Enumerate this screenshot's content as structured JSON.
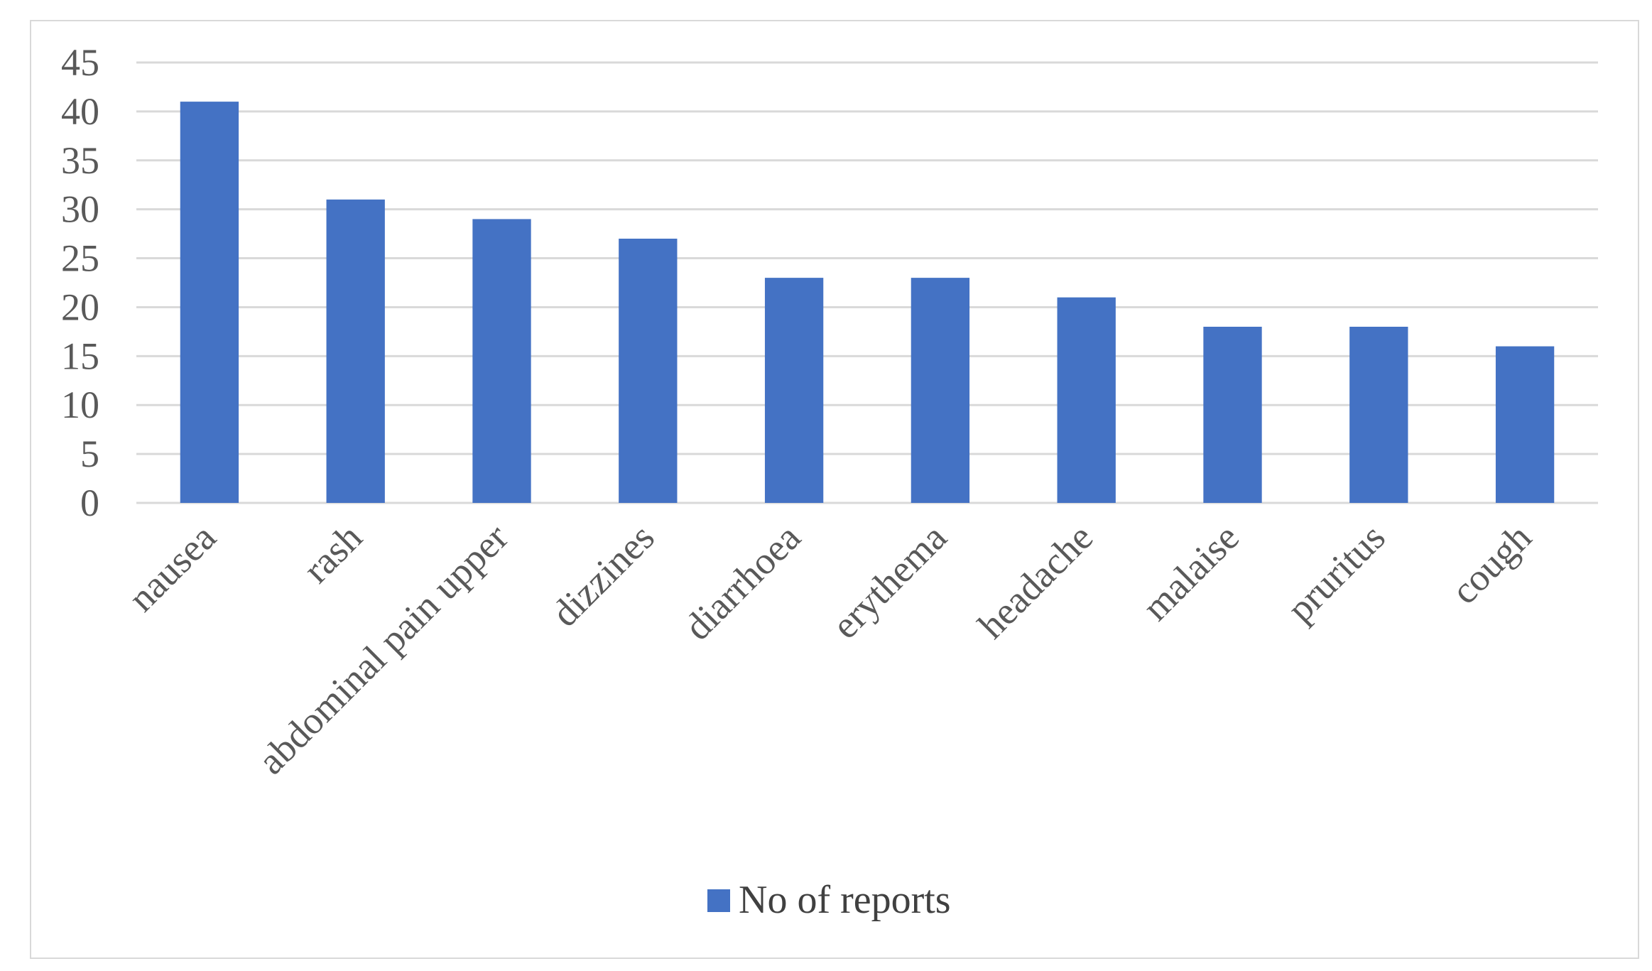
{
  "chart_data": {
    "type": "bar",
    "categories": [
      "nausea",
      "rash",
      "abdominal pain upper",
      "dizzines",
      "diarrhoea",
      "erythema",
      "headache",
      "malaise",
      "pruritus",
      "cough"
    ],
    "series": [
      {
        "name": "No of reports",
        "values": [
          41,
          31,
          29,
          27,
          23,
          23,
          21,
          18,
          18,
          16
        ],
        "color": "#4472c4"
      }
    ],
    "title": "",
    "xlabel": "",
    "ylabel": "",
    "ylim": [
      0,
      45
    ],
    "y_ticks": [
      0,
      5,
      10,
      15,
      20,
      25,
      30,
      35,
      40,
      45
    ],
    "grid": true,
    "legend_position": "bottom"
  }
}
